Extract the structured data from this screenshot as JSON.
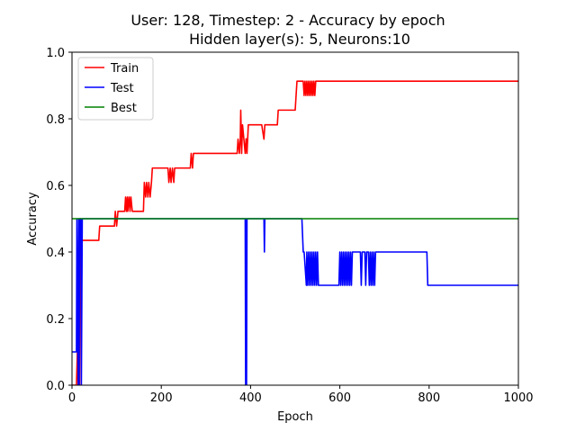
{
  "chart_data": {
    "type": "line",
    "title": "User: 128, Timestep: 2 - Accuracy by epoch",
    "subtitle": "Hidden layer(s): 5, Neurons:10",
    "xlabel": "Epoch",
    "ylabel": "Accuracy",
    "xlim": [
      0,
      1000
    ],
    "ylim": [
      0,
      1.0
    ],
    "xticks": [
      "0",
      "200",
      "400",
      "600",
      "800",
      "1000"
    ],
    "yticks": [
      "0.0",
      "0.2",
      "0.4",
      "0.6",
      "0.8",
      "1.0"
    ],
    "grid": false,
    "legend_position": "top-left",
    "series": [
      {
        "name": "Train",
        "color": "#ff0000",
        "x": [
          0,
          10,
          12,
          14,
          15,
          17,
          18,
          20,
          22,
          25,
          60,
          62,
          95,
          97,
          100,
          103,
          105,
          110,
          118,
          120,
          122,
          124,
          125,
          128,
          130,
          132,
          135,
          140,
          160,
          162,
          165,
          167,
          170,
          172,
          175,
          178,
          180,
          182,
          185,
          215,
          217,
          220,
          222,
          225,
          228,
          230,
          232,
          235,
          265,
          267,
          270,
          272,
          275,
          370,
          372,
          375,
          377,
          378,
          380,
          382,
          385,
          388,
          390,
          392,
          395,
          398,
          425,
          430,
          432,
          435,
          460,
          462,
          500,
          502,
          504,
          506,
          508,
          510,
          512,
          518,
          520,
          522,
          524,
          526,
          528,
          530,
          532,
          534,
          536,
          538,
          540,
          542,
          544,
          546,
          548,
          550,
          1000
        ],
        "values": [
          0.0,
          0.0,
          0.1,
          0.0,
          0.435,
          0.0,
          0.435,
          0.5,
          0.435,
          0.435,
          0.435,
          0.478,
          0.478,
          0.522,
          0.478,
          0.522,
          0.522,
          0.522,
          0.522,
          0.565,
          0.522,
          0.565,
          0.522,
          0.565,
          0.522,
          0.565,
          0.522,
          0.522,
          0.522,
          0.609,
          0.565,
          0.609,
          0.565,
          0.609,
          0.565,
          0.609,
          0.652,
          0.652,
          0.652,
          0.652,
          0.609,
          0.652,
          0.609,
          0.652,
          0.609,
          0.652,
          0.652,
          0.652,
          0.652,
          0.696,
          0.652,
          0.696,
          0.696,
          0.696,
          0.739,
          0.696,
          0.739,
          0.826,
          0.696,
          0.782,
          0.739,
          0.696,
          0.74,
          0.696,
          0.782,
          0.782,
          0.782,
          0.739,
          0.782,
          0.782,
          0.782,
          0.826,
          0.826,
          0.87,
          0.913,
          0.913,
          0.913,
          0.913,
          0.913,
          0.913,
          0.87,
          0.913,
          0.87,
          0.913,
          0.87,
          0.913,
          0.87,
          0.913,
          0.87,
          0.913,
          0.87,
          0.913,
          0.87,
          0.913,
          0.913,
          0.913,
          0.913
        ]
      },
      {
        "name": "Test",
        "color": "#0000ff",
        "x": [
          0,
          5,
          10,
          11,
          13,
          14,
          15,
          16,
          17,
          20,
          21,
          23,
          24,
          25,
          388,
          389,
          390,
          391,
          392,
          393,
          430,
          431,
          432,
          433,
          434,
          515,
          518,
          520,
          525,
          526,
          528,
          530,
          532,
          534,
          536,
          538,
          540,
          542,
          544,
          546,
          548,
          550,
          552,
          554,
          556,
          558,
          598,
          600,
          602,
          604,
          606,
          608,
          610,
          612,
          614,
          616,
          618,
          620,
          622,
          624,
          626,
          628,
          630,
          632,
          634,
          636,
          638,
          640,
          642,
          644,
          646,
          648,
          650,
          652,
          654,
          656,
          658,
          660,
          662,
          664,
          666,
          668,
          670,
          672,
          674,
          676,
          678,
          680,
          795,
          797,
          1000
        ],
        "values": [
          0.1,
          0.1,
          0.1,
          0.5,
          0.1,
          0.0,
          0.5,
          0.0,
          0.5,
          0.5,
          0.0,
          0.5,
          0.5,
          0.5,
          0.5,
          0.0,
          0.5,
          0.0,
          0.5,
          0.5,
          0.5,
          0.4,
          0.5,
          0.5,
          0.5,
          0.5,
          0.4,
          0.4,
          0.3,
          0.4,
          0.3,
          0.4,
          0.3,
          0.4,
          0.3,
          0.4,
          0.3,
          0.4,
          0.3,
          0.4,
          0.3,
          0.4,
          0.3,
          0.3,
          0.3,
          0.3,
          0.3,
          0.4,
          0.3,
          0.4,
          0.3,
          0.4,
          0.3,
          0.4,
          0.3,
          0.4,
          0.3,
          0.4,
          0.3,
          0.4,
          0.3,
          0.4,
          0.4,
          0.4,
          0.4,
          0.4,
          0.4,
          0.4,
          0.4,
          0.4,
          0.4,
          0.3,
          0.4,
          0.4,
          0.4,
          0.4,
          0.3,
          0.4,
          0.4,
          0.4,
          0.3,
          0.4,
          0.3,
          0.4,
          0.3,
          0.4,
          0.3,
          0.4,
          0.4,
          0.3,
          0.3
        ]
      },
      {
        "name": "Best",
        "color": "#008000",
        "x": [
          0,
          1000
        ],
        "values": [
          0.5,
          0.5
        ]
      }
    ]
  }
}
